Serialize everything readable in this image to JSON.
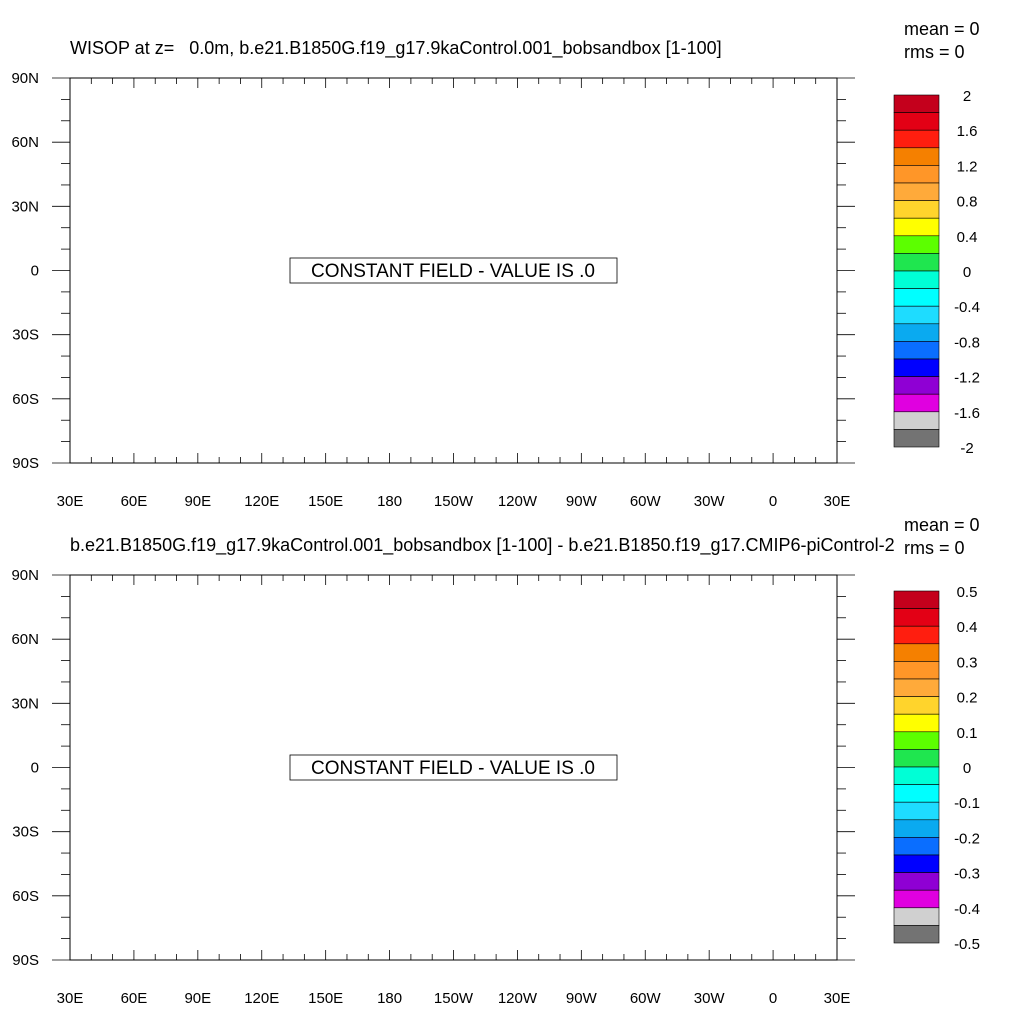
{
  "panels": [
    {
      "title": "WISOP at z=   0.0m, b.e21.B1850G.f19_g17.9kaControl.001_bobsandbox [1-100]",
      "stats": {
        "mean": "mean = 0",
        "rms": "rms = 0"
      },
      "message": "CONSTANT FIELD - VALUE IS .0",
      "colorbar_labels": [
        "2",
        "1.6",
        "1.2",
        "0.8",
        "0.4",
        "0",
        "-0.4",
        "-0.8",
        "-1.2",
        "-1.6",
        "-2"
      ]
    },
    {
      "title": "b.e21.B1850G.f19_g17.9kaControl.001_bobsandbox [1-100] - b.e21.B1850.f19_g17.CMIP6-piControl-2",
      "stats": {
        "mean": "mean = 0",
        "rms": "rms = 0"
      },
      "message": "CONSTANT FIELD - VALUE IS .0",
      "colorbar_labels": [
        "0.5",
        "0.4",
        "0.3",
        "0.2",
        "0.1",
        "0",
        "-0.1",
        "-0.2",
        "-0.3",
        "-0.4",
        "-0.5"
      ]
    }
  ],
  "colors": {
    "colorbar": [
      "#c4001c",
      "#e30015",
      "#ff1e0f",
      "#f58000",
      "#ff9628",
      "#ffaa3a",
      "#ffd42c",
      "#ffff00",
      "#5cff00",
      "#1fe64f",
      "#00ffd6",
      "#00ffff",
      "#1edcff",
      "#0aaaf0",
      "#0a6eff",
      "#0000ff",
      "#8f00d4",
      "#e000e0",
      "#d0d0d0",
      "#737373"
    ]
  },
  "chart_data": [
    {
      "type": "heatmap",
      "title": "WISOP at z=   0.0m, b.e21.B1850G.f19_g17.9kaControl.001_bobsandbox [1-100]",
      "x_tick_labels": [
        "30E",
        "60E",
        "90E",
        "120E",
        "150E",
        "180",
        "150W",
        "120W",
        "90W",
        "60W",
        "30W",
        "0",
        "30E"
      ],
      "y_tick_labels": [
        "90N",
        "60N",
        "30N",
        "0",
        "30S",
        "60S",
        "90S"
      ],
      "xlim": [
        30,
        390
      ],
      "ylim": [
        -90,
        90
      ],
      "mean": 0,
      "rms": 0,
      "field_value": 0,
      "colorbar_levels": [
        2,
        1.6,
        1.2,
        0.8,
        0.4,
        0,
        -0.4,
        -0.8,
        -1.2,
        -1.6,
        -2
      ]
    },
    {
      "type": "heatmap",
      "title": "b.e21.B1850G.f19_g17.9kaControl.001_bobsandbox [1-100] - b.e21.B1850.f19_g17.CMIP6-piControl-2",
      "x_tick_labels": [
        "30E",
        "60E",
        "90E",
        "120E",
        "150E",
        "180",
        "150W",
        "120W",
        "90W",
        "60W",
        "30W",
        "0",
        "30E"
      ],
      "y_tick_labels": [
        "90N",
        "60N",
        "30N",
        "0",
        "30S",
        "60S",
        "90S"
      ],
      "xlim": [
        30,
        390
      ],
      "ylim": [
        -90,
        90
      ],
      "mean": 0,
      "rms": 0,
      "field_value": 0,
      "colorbar_levels": [
        0.5,
        0.4,
        0.3,
        0.2,
        0.1,
        0,
        -0.1,
        -0.2,
        -0.3,
        -0.4,
        -0.5
      ]
    }
  ]
}
